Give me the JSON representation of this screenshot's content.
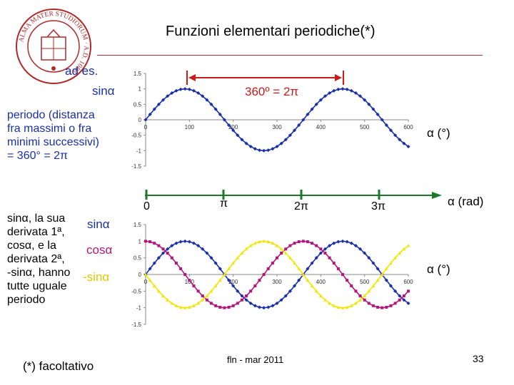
{
  "slide": {
    "title": "Funzioni elementari periodiche(*)",
    "seal_text": "ALMA MATER STUDIORUM A.D. 1088",
    "ad_es": "ad es.",
    "sin_label": "sinα",
    "period_lines": [
      "periodo (distanza",
      "fra massimi o fra",
      "minimi successivi)",
      "= 360° = 2π"
    ],
    "period_annotation": "360º = 2π",
    "alpha_deg_top": "α (°)",
    "alpha_rad": "α (rad)",
    "alpha_deg_bottom": "α (°)",
    "radian_ticks": [
      "0",
      "π",
      "2π",
      "3π"
    ],
    "left_lines": [
      "sinα, la sua",
      "derivata 1ª,",
      "cosα, e la",
      "derivata 2ª,",
      "-sinα, hanno",
      "tutte uguale",
      "periodo"
    ],
    "legend": {
      "sin": "sinα",
      "cos": "cosα",
      "neg_sin": "-sinα"
    },
    "footnote": "(*) facoltativo",
    "footer_center": "fln - mar 2011",
    "page_number": "33"
  },
  "colors": {
    "sin": "#1b2fa8",
    "cos": "#b3157a",
    "neg_sin": "#f2e600",
    "accent": "#cc1a1a"
  },
  "chart_data": [
    {
      "type": "line",
      "series": [
        {
          "name": "sinα",
          "color": "#1b2fa8",
          "fn": "sin",
          "x_start": 0,
          "x_end": 600,
          "x_step": 10
        }
      ],
      "x_ticks": [
        "0",
        "100",
        "200",
        "300",
        "400",
        "500",
        "600"
      ],
      "y_ticks": [
        "1.5",
        "1",
        "0.5",
        "0",
        "-0.5",
        "-1",
        "-1.5"
      ],
      "xlim": [
        0,
        600
      ],
      "ylim": [
        -1.5,
        1.5
      ]
    },
    {
      "type": "line",
      "series": [
        {
          "name": "sinα",
          "color": "#1b2fa8",
          "fn": "sin",
          "x_start": 0,
          "x_end": 600,
          "x_step": 10
        },
        {
          "name": "cosα",
          "color": "#b3157a",
          "fn": "cos",
          "x_start": 0,
          "x_end": 600,
          "x_step": 10
        },
        {
          "name": "-sinα",
          "color": "#f2e600",
          "fn": "negsin",
          "x_start": 0,
          "x_end": 600,
          "x_step": 10
        }
      ],
      "x_ticks": [
        "0",
        "100",
        "200",
        "300",
        "400",
        "500",
        "600"
      ],
      "y_ticks": [
        "1.5",
        "1",
        "0.5",
        "0",
        "-0.5",
        "-1",
        "-1.5"
      ],
      "xlim": [
        0,
        600
      ],
      "ylim": [
        -1.5,
        1.5
      ]
    }
  ]
}
